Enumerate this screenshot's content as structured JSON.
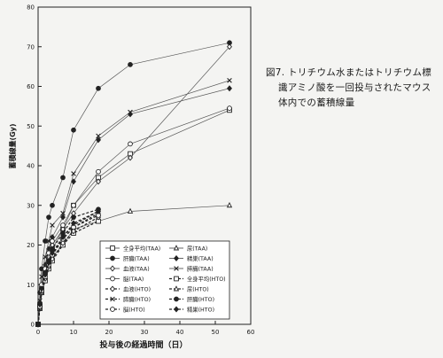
{
  "caption": {
    "line1": "図7. トリチウム水またはトリチウム標",
    "line2": "識アミノ酸を一回投与されたマウス",
    "line3": "体内での蓄積線量"
  },
  "chart_data": {
    "type": "line",
    "xlabel": "投与後の経過時間（日）",
    "ylabel": "蓄積線量(Gy)",
    "xlim": [
      0,
      60
    ],
    "ylim": [
      0,
      80
    ],
    "xticks": [
      0,
      10,
      20,
      30,
      40,
      50,
      60
    ],
    "yticks": [
      0,
      10,
      20,
      30,
      40,
      50,
      60,
      70,
      80
    ],
    "grid": false,
    "legend_position": "lower-right, inside plot",
    "series": [
      {
        "name": "全身平均(TAA)",
        "marker": "square-open",
        "dash": "solid",
        "x": [
          0,
          0.5,
          1,
          2,
          3,
          4,
          7,
          10,
          17,
          26,
          54
        ],
        "y": [
          0,
          5,
          9,
          13,
          16,
          19,
          24,
          30,
          37,
          43,
          54
        ]
      },
      {
        "name": "尿(TAA)",
        "marker": "triangle-open",
        "dash": "solid",
        "x": [
          0,
          0.5,
          1,
          2,
          3,
          4,
          7,
          10,
          17,
          26,
          54
        ],
        "y": [
          0,
          4,
          8,
          12,
          15,
          17,
          20,
          24,
          26,
          28.5,
          30
        ]
      },
      {
        "name": "肝臓(TAA)",
        "marker": "circle-filled",
        "dash": "solid",
        "x": [
          0,
          0.5,
          1,
          2,
          3,
          4,
          7,
          10,
          17,
          26,
          54
        ],
        "y": [
          0,
          8,
          14,
          21,
          27,
          30,
          37,
          49,
          59.5,
          65.5,
          71
        ]
      },
      {
        "name": "精巣(TAA)",
        "marker": "diamond-filled",
        "dash": "solid",
        "x": [
          0,
          0.5,
          1,
          2,
          3,
          4,
          7,
          10,
          17,
          26,
          54
        ],
        "y": [
          0,
          5,
          10,
          15,
          19,
          22,
          27,
          36,
          46.5,
          53,
          59.5
        ]
      },
      {
        "name": "血液(TAA)",
        "marker": "diamond-open",
        "dash": "solid",
        "x": [
          0,
          0.5,
          1,
          2,
          3,
          4,
          7,
          10,
          17,
          26,
          54
        ],
        "y": [
          0,
          5,
          9,
          13,
          17,
          20,
          24,
          28,
          36,
          42,
          70
        ]
      },
      {
        "name": "膵臓(TAA)",
        "marker": "x",
        "dash": "solid",
        "x": [
          0,
          0.5,
          1,
          2,
          3,
          4,
          7,
          10,
          17,
          26,
          54
        ],
        "y": [
          0,
          6,
          12,
          17,
          21,
          25,
          28,
          38,
          47.5,
          53.5,
          61.5
        ]
      },
      {
        "name": "脳(TAA)",
        "marker": "circle-open",
        "dash": "solid",
        "x": [
          0,
          0.5,
          1,
          2,
          3,
          4,
          7,
          10,
          17,
          26,
          54
        ],
        "y": [
          0,
          5,
          10,
          14,
          18,
          21,
          25,
          30,
          38.5,
          45.5,
          54.5
        ]
      },
      {
        "name": "全身平均(HTO)",
        "marker": "square-open",
        "dash": "dashed",
        "x": [
          0,
          0.5,
          1,
          2,
          3,
          4,
          7,
          10,
          17
        ],
        "y": [
          0,
          4,
          8,
          11,
          14,
          16,
          20,
          23,
          26
        ]
      },
      {
        "name": "血液(HTO)",
        "marker": "diamond-open",
        "dash": "dashed",
        "x": [
          0,
          0.5,
          1,
          2,
          3,
          4,
          7,
          10,
          17
        ],
        "y": [
          0,
          4,
          8,
          11.5,
          14.5,
          16.5,
          20.5,
          23.5,
          27
        ]
      },
      {
        "name": "尿(HTO)",
        "marker": "triangle-open",
        "dash": "dashed",
        "x": [
          0,
          0.5,
          1,
          2,
          3,
          4,
          7,
          10,
          17
        ],
        "y": [
          0,
          4.5,
          8.5,
          12,
          15,
          17.5,
          21.5,
          24.5,
          28
        ]
      },
      {
        "name": "膵臓(HTO)",
        "marker": "x",
        "dash": "dashed",
        "x": [
          0,
          0.5,
          1,
          2,
          3,
          4,
          7,
          10,
          17
        ],
        "y": [
          0,
          4.5,
          8.5,
          12.5,
          15.5,
          18,
          22,
          25,
          28.5
        ]
      },
      {
        "name": "肝臓(HTO)",
        "marker": "circle-filled",
        "dash": "dashed",
        "x": [
          0,
          0.5,
          1,
          2,
          3,
          4,
          7,
          10,
          17
        ],
        "y": [
          0,
          5,
          9,
          13,
          16,
          19,
          23,
          27,
          29
        ]
      },
      {
        "name": "脳(HTO)",
        "marker": "circle-open",
        "dash": "dashed",
        "x": [
          0,
          0.5,
          1,
          2,
          3,
          4,
          7,
          10,
          17
        ],
        "y": [
          0,
          4.5,
          8.5,
          12,
          15,
          17.5,
          21.5,
          24.5,
          27.5
        ]
      },
      {
        "name": "精巣(HTO)",
        "marker": "diamond-filled",
        "dash": "dashed",
        "x": [
          0,
          0.5,
          1,
          2,
          3,
          4,
          7,
          10,
          17
        ],
        "y": [
          0,
          5,
          9,
          12.5,
          15.5,
          18,
          22,
          25.5,
          28.5
        ]
      }
    ]
  }
}
